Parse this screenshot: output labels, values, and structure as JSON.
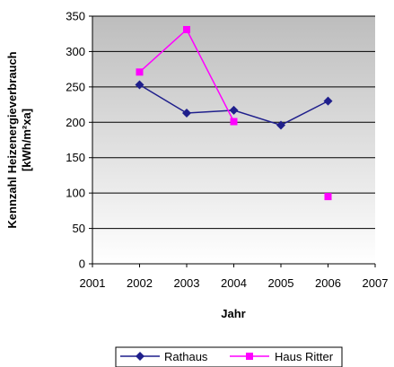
{
  "chart_data": {
    "type": "line",
    "xlabel": "Jahr",
    "ylabel": "Kennzahl Heizenergieverbrauch [kWh/m²xa]",
    "ylabel_lines": [
      "Kennzahl Heizenergieverbrauch",
      "[kWh/m²xa]"
    ],
    "xlim": [
      2001,
      2007
    ],
    "ylim": [
      0,
      350
    ],
    "x_ticks": [
      2001,
      2002,
      2003,
      2004,
      2005,
      2006,
      2007
    ],
    "y_ticks": [
      0,
      50,
      100,
      150,
      200,
      250,
      300,
      350
    ],
    "grid": "horizontal",
    "legend_position": "bottom",
    "series": [
      {
        "name": "Rathaus",
        "color": "#1f1f8c",
        "marker": "diamond",
        "x": [
          2002,
          2003,
          2004,
          2005,
          2006
        ],
        "y": [
          253,
          213,
          217,
          196,
          230
        ],
        "segments": [
          [
            0,
            1,
            2,
            3,
            4
          ]
        ]
      },
      {
        "name": "Haus Ritter",
        "color": "#ff00ff",
        "marker": "square",
        "x": [
          2002,
          2003,
          2004,
          2006
        ],
        "y": [
          271,
          331,
          201,
          95
        ],
        "segments": [
          [
            0,
            1,
            2
          ]
        ]
      }
    ]
  }
}
